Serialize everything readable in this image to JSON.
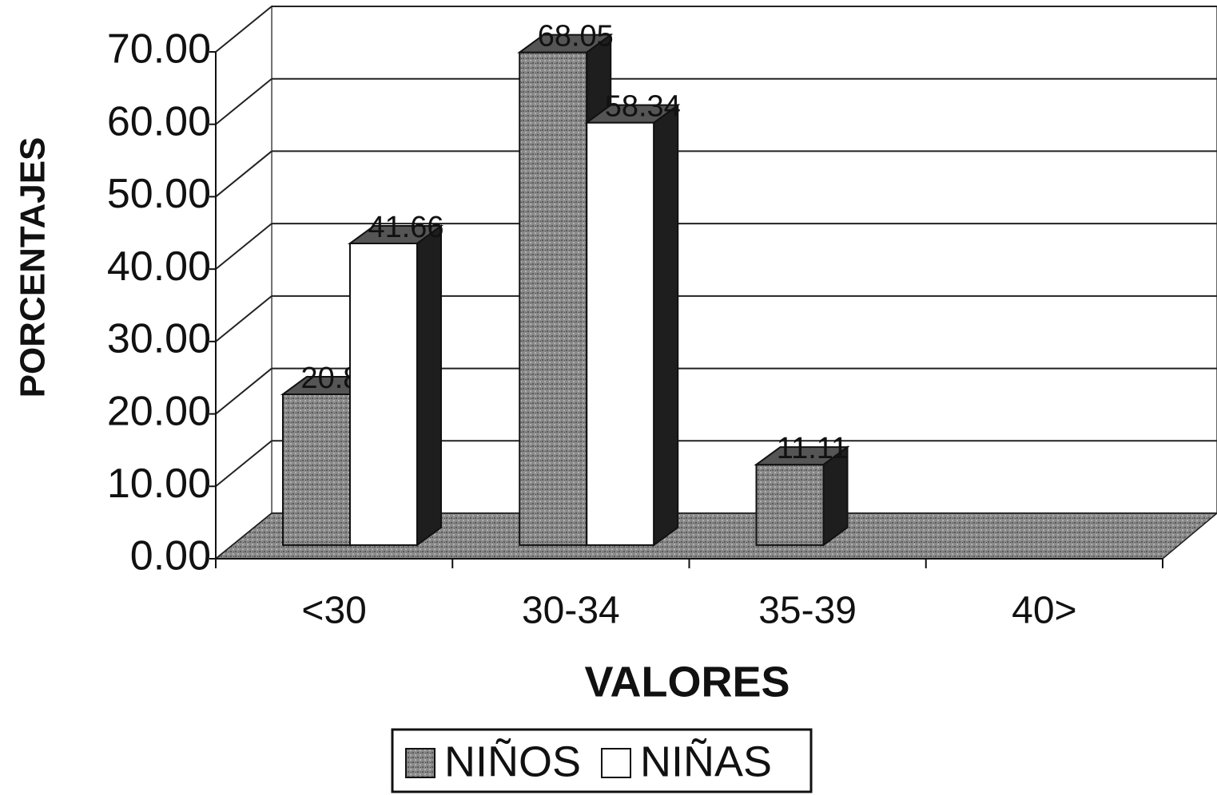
{
  "chart_data": {
    "type": "bar3d",
    "x_label": "VALORES",
    "y_label": "PORCENTAJES",
    "categories": [
      "<30",
      "30-34",
      "35-39",
      "40>"
    ],
    "series": [
      {
        "name": "NIÑOS",
        "color": "#8c8c8c",
        "values": [
          20.83,
          68.05,
          11.11,
          null
        ]
      },
      {
        "name": "NIÑAS",
        "color": "#ffffff",
        "values": [
          41.66,
          58.34,
          null,
          null
        ]
      }
    ],
    "ylim": [
      0,
      70
    ],
    "yticks": [
      {
        "value": 0,
        "label": "0.00"
      },
      {
        "value": 10,
        "label": "10.00"
      },
      {
        "value": 20,
        "label": "20.00"
      },
      {
        "value": 30,
        "label": "30.00"
      },
      {
        "value": 40,
        "label": "40.00"
      },
      {
        "value": 50,
        "label": "50.00"
      },
      {
        "value": 60,
        "label": "60.00"
      },
      {
        "value": 70,
        "label": "70.00"
      }
    ],
    "grid": true,
    "legend": "bottom"
  }
}
